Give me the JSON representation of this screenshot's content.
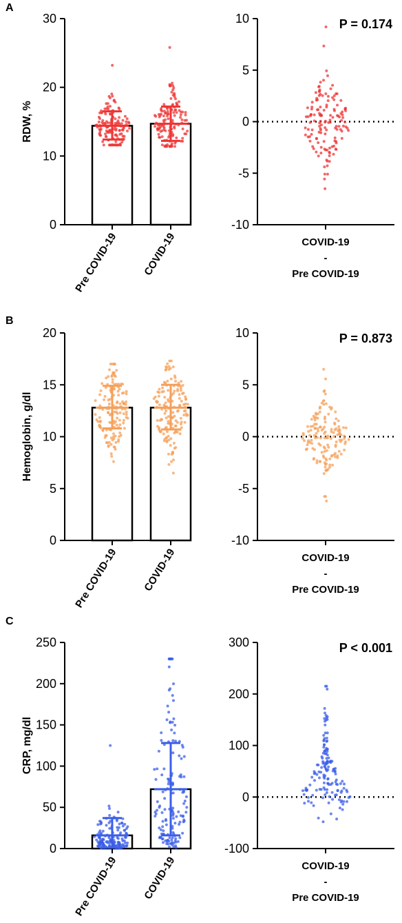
{
  "colors": {
    "rdw": "#ee3535",
    "hemoglobin": "#f5a05a",
    "crp": "#3b5ee8",
    "axis": "#000000"
  },
  "chart_data": [
    {
      "panel": "A",
      "type": "bar",
      "ylabel": "RDW, %",
      "ylim": [
        0,
        30
      ],
      "yticks": [
        0,
        10,
        20,
        30
      ],
      "categories": [
        "Pre COVID-19",
        "COVID-19"
      ],
      "values": [
        14.4,
        14.7
      ],
      "error_low": [
        12.4,
        12.2
      ],
      "error_high": [
        16.5,
        17.2
      ],
      "point_range": [
        [
          11.6,
          23.2
        ],
        [
          11.4,
          25.8
        ]
      ],
      "point_count": 140,
      "color": "rdw"
    },
    {
      "panel": "A",
      "type": "scatter",
      "ylim": [
        -10,
        10
      ],
      "yticks": [
        -10,
        -5,
        0,
        5,
        10
      ],
      "categories": [
        "COVID-19\n-\nPre COVID-19"
      ],
      "reference_line": 0,
      "annotation": "P = 0.174",
      "point_range": [
        -6.5,
        9.2
      ],
      "point_count": 140,
      "color": "rdw"
    },
    {
      "panel": "B",
      "type": "bar",
      "ylabel": "Hemoglobin, g/dl",
      "ylim": [
        0,
        20
      ],
      "yticks": [
        0,
        5,
        10,
        15,
        20
      ],
      "categories": [
        "Pre COVID-19",
        "COVID-19"
      ],
      "values": [
        12.8,
        12.8
      ],
      "error_low": [
        10.8,
        10.7
      ],
      "error_high": [
        14.9,
        15.0
      ],
      "point_range": [
        [
          7.6,
          17.0
        ],
        [
          6.5,
          17.3
        ]
      ],
      "point_count": 150,
      "color": "hemoglobin"
    },
    {
      "panel": "B",
      "type": "scatter",
      "ylim": [
        -10,
        10
      ],
      "yticks": [
        -10,
        -5,
        0,
        5,
        10
      ],
      "categories": [
        "COVID-19\n-\nPre COVID-19"
      ],
      "reference_line": 0,
      "annotation": "P = 0.873",
      "point_range": [
        -6.2,
        6.5
      ],
      "point_count": 150,
      "color": "hemoglobin"
    },
    {
      "panel": "C",
      "type": "bar",
      "ylabel": "CRP, mg/dl",
      "ylim": [
        0,
        250
      ],
      "yticks": [
        0,
        50,
        100,
        150,
        200,
        250
      ],
      "categories": [
        "Pre COVID-19",
        "COVID-19"
      ],
      "values": [
        16,
        72
      ],
      "error_low": [
        1,
        16
      ],
      "error_high": [
        37,
        128
      ],
      "point_range": [
        [
          0,
          125
        ],
        [
          0,
          230
        ]
      ],
      "point_count": 150,
      "color": "crp"
    },
    {
      "panel": "C",
      "type": "scatter",
      "ylim": [
        -100,
        300
      ],
      "yticks": [
        -100,
        0,
        100,
        200,
        300
      ],
      "categories": [
        "COVID-19\n-\nPre COVID-19"
      ],
      "reference_line": 0,
      "annotation": "P < 0.001",
      "point_range": [
        -48,
        215
      ],
      "point_count": 150,
      "color": "crp"
    }
  ]
}
